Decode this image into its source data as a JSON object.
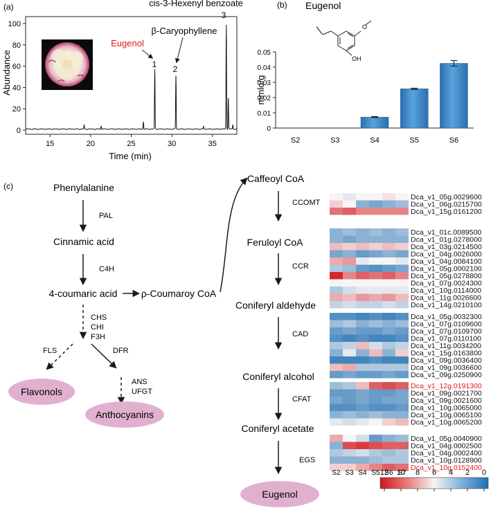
{
  "panel_a": {
    "label": "(a)",
    "ylabel": "Abundance",
    "xlabel": "Time (min)",
    "yticks": [
      "0",
      "20",
      "40",
      "60",
      "80",
      "100"
    ],
    "xticks": [
      "15",
      "20",
      "25",
      "30",
      "35"
    ],
    "peaks": [
      {
        "num": "1",
        "name": "Eugenol",
        "color": "#e0181b"
      },
      {
        "num": "2",
        "name": "β-Caryophyllene",
        "color": "#222222"
      },
      {
        "num": "3",
        "name": "cis-3-Hexenyl benzoate",
        "color": "#222222"
      }
    ]
  },
  "panel_b": {
    "label": "(b)",
    "compound": "Eugenol",
    "oh_label": "OH",
    "o_label": "O"
  },
  "panel_c": {
    "label": "(c)",
    "nodes": {
      "phenylalanine": "Phenylalanine",
      "cinnamic": "Cinnamic acid",
      "coumaric": "4-coumaric acid",
      "coumaroyl": "ρ-Coumaroy CoA",
      "caffeoyl": "Caffeoyl CoA",
      "feruloyl": "Feruloyl CoA",
      "coniferyl_ald": "Coniferyl aldehyde",
      "coniferyl_alc": "Coniferyl alcohol",
      "coniferyl_ace": "Coniferyl acetate",
      "eugenol": "Eugenol",
      "flavonols": "Flavonols",
      "anthocyanins": "Anthocyanins"
    },
    "enzymes": {
      "pal": "PAL",
      "c4h": "C4H",
      "chs": "CHS",
      "chi": "CHI",
      "f3h": "F3H",
      "fls": "FLS",
      "dfr": "DFR",
      "ans": "ANS",
      "ufgt": "UFGT",
      "ccomt": "CCOMT",
      "ccr": "CCR",
      "cad": "CAD",
      "cfat": "CFAT",
      "egs": "EGS"
    },
    "heatmap_samples": [
      "S2",
      "S3",
      "S4",
      "S5",
      "S6",
      "S7"
    ],
    "colorbar_ticks": [
      "12",
      "10",
      "8",
      "6",
      "4",
      "2",
      "0"
    ],
    "heatmap_groups": [
      {
        "enzyme": "CCOMT",
        "genes": [
          {
            "id": "Dca_v1_05g.0029600",
            "red": false,
            "values": [
              6,
              5.5,
              6,
              6,
              6.5,
              6
            ]
          },
          {
            "id": "Dca_v1_06g.0215700",
            "red": false,
            "values": [
              7,
              6,
              3,
              2.5,
              3,
              3.5
            ]
          },
          {
            "id": "Dca_v1_15g.0161200",
            "red": false,
            "values": [
              9.5,
              10,
              9,
              9,
              9,
              9
            ]
          }
        ]
      },
      {
        "enzyme": "CCR",
        "genes": [
          {
            "id": "Dca_v1_01c.0089500",
            "red": false,
            "values": [
              3,
              3.5,
              3,
              3.5,
              3,
              3.5
            ]
          },
          {
            "id": "Dca_v1_01g.0278000",
            "red": false,
            "values": [
              3,
              2.5,
              3,
              3,
              3,
              3
            ]
          },
          {
            "id": "Dca_v1_03g.0214500",
            "red": false,
            "values": [
              7.5,
              7,
              7.5,
              7,
              7.5,
              7
            ]
          },
          {
            "id": "Dca_v1_04g.0026000",
            "red": false,
            "values": [
              2.5,
              3,
              2,
              2.5,
              3,
              2.5
            ]
          },
          {
            "id": "Dca_v1_04g.0084100",
            "red": false,
            "values": [
              8,
              8.5,
              5.5,
              6,
              6,
              5.5
            ]
          },
          {
            "id": "Dca_v1_05g.0002100",
            "red": false,
            "values": [
              4,
              3.5,
              2,
              1.5,
              2,
              2.5
            ]
          },
          {
            "id": "Dca_v1_05g.0278800",
            "red": false,
            "values": [
              11.5,
              9,
              10,
              9.5,
              10,
              9
            ]
          },
          {
            "id": "Dca_v1_07g.0024300",
            "red": false,
            "values": [
              6,
              6,
              6,
              6,
              6,
              6
            ]
          },
          {
            "id": "Dca_v1_10g.0114000",
            "red": false,
            "values": [
              4,
              5,
              5.5,
              5.5,
              5.5,
              5.5
            ]
          },
          {
            "id": "Dca_v1_11g.0026600",
            "red": false,
            "values": [
              8,
              7.5,
              8.5,
              8,
              8.5,
              7.5
            ]
          },
          {
            "id": "Dca_v1_14g.0210100",
            "red": false,
            "values": [
              4.5,
              5,
              4.5,
              4.5,
              5,
              4.5
            ]
          }
        ]
      },
      {
        "enzyme": "CAD",
        "genes": [
          {
            "id": "Dca_v1_05g.0032300",
            "red": false,
            "values": [
              1.5,
              1.5,
              1,
              1.5,
              1,
              1.5
            ]
          },
          {
            "id": "Dca_v1_07g.0109600",
            "red": false,
            "values": [
              3.5,
              4,
              3,
              3.5,
              3,
              3.5
            ]
          },
          {
            "id": "Dca_v1_07g.0109700",
            "red": false,
            "values": [
              2,
              2.5,
              2,
              2,
              2.5,
              2
            ]
          },
          {
            "id": "Dca_v1_07g.0110100",
            "red": false,
            "values": [
              1.5,
              1,
              1.5,
              1,
              1,
              1.5
            ]
          },
          {
            "id": "Dca_v1_11g.0034200",
            "red": false,
            "values": [
              4,
              4.5,
              7.5,
              5,
              4,
              4.5
            ]
          },
          {
            "id": "Dca_v1_15g.0163800",
            "red": false,
            "values": [
              3,
              5.5,
              3,
              7.5,
              3,
              7
            ]
          },
          {
            "id": "Dca_v1_09g.0036400",
            "red": false,
            "values": [
              1,
              1,
              1,
              1.5,
              1,
              1
            ]
          },
          {
            "id": "Dca_v1_09g.0036600",
            "red": false,
            "values": [
              7.5,
              8,
              4,
              4,
              4,
              4
            ]
          },
          {
            "id": "Dca_v1_09g.0250900",
            "red": false,
            "values": [
              2,
              2.5,
              2,
              2,
              2.5,
              2
            ]
          }
        ]
      },
      {
        "enzyme": "CFAT",
        "genes": [
          {
            "id": "Dca_v1_12g.0191300",
            "red": true,
            "values": [
              3.5,
              4,
              7.5,
              10,
              10.5,
              10
            ]
          },
          {
            "id": "Dca_v1_09g.0021700",
            "red": false,
            "values": [
              2,
              2,
              2.5,
              2,
              2,
              2.5
            ]
          },
          {
            "id": "Dca_v1_09g.0021600",
            "red": false,
            "values": [
              2.5,
              2,
              2.5,
              2,
              2.5,
              2.5
            ]
          },
          {
            "id": "Dca_v1_10g.0065000",
            "red": false,
            "values": [
              1.5,
              1.5,
              2,
              1.5,
              1.5,
              2
            ]
          },
          {
            "id": "Dca_v1_10g.0065100",
            "red": false,
            "values": [
              3,
              3.5,
              3,
              3.5,
              3,
              3
            ]
          },
          {
            "id": "Dca_v1_10g.0065200",
            "red": false,
            "values": [
              5.5,
              5,
              5.5,
              6,
              7,
              7.5
            ]
          }
        ]
      },
      {
        "enzyme": "EGS",
        "genes": [
          {
            "id": "Dca_v1_05g.0040900",
            "red": false,
            "values": [
              8,
              6,
              5,
              2,
              3,
              3.5
            ]
          },
          {
            "id": "Dca_v1_04g.0002500",
            "red": false,
            "values": [
              3,
              10.5,
              11,
              10.5,
              10,
              10
            ]
          },
          {
            "id": "Dca_v1_04g.0002400",
            "red": false,
            "values": [
              4,
              4.5,
              5,
              4,
              3.5,
              4
            ]
          },
          {
            "id": "Dca_v1_10g.0128900",
            "red": false,
            "values": [
              3,
              3,
              3,
              3.5,
              4,
              4
            ]
          },
          {
            "id": "Dca_v1_10g.0152400",
            "red": true,
            "values": [
              7,
              7,
              8,
              9,
              10,
              9.5
            ]
          }
        ]
      }
    ]
  },
  "chart_data": {
    "type": "bar",
    "title": "Eugenol",
    "xlabel": "",
    "ylabel": "mmlo/g",
    "categories": [
      "S2",
      "S3",
      "S4",
      "S5",
      "S6"
    ],
    "values": [
      0,
      0,
      0.0072,
      0.0258,
      0.0425
    ],
    "errors": [
      0,
      0,
      0.0003,
      0.0004,
      0.0018
    ],
    "yticks": [
      "0",
      "0.01",
      "0.02",
      "0.03",
      "0.04",
      "0.05"
    ],
    "ylim": [
      0,
      0.05
    ],
    "color": "#3f87c7"
  }
}
